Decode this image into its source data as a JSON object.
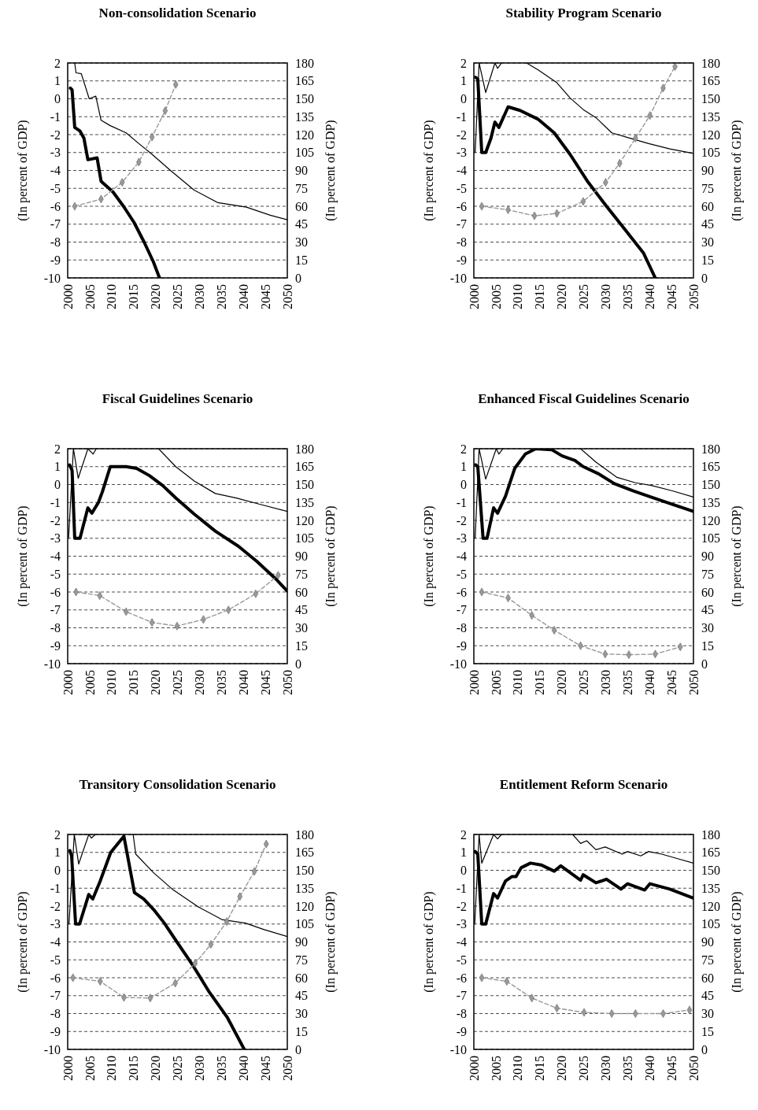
{
  "chart_data": [
    {
      "type": "line",
      "title": "Non-consolidation Scenario",
      "ylabel": "(In percent of GDP)",
      "y2label": "(In percent of GDP)",
      "xlim": [
        2000,
        2050
      ],
      "xticks": [
        2000,
        2005,
        2010,
        2015,
        2020,
        2025,
        2030,
        2035,
        2040,
        2045,
        2050
      ],
      "ylim": [
        -10,
        2
      ],
      "yticks": [
        -10,
        -9,
        -8,
        -7,
        -6,
        -5,
        -4,
        -3,
        -2,
        -1,
        0,
        1,
        2
      ],
      "y2lim": [
        0,
        180
      ],
      "y2ticks": [
        0,
        15,
        30,
        45,
        60,
        75,
        90,
        105,
        120,
        135,
        150,
        165,
        180
      ],
      "grid": "y",
      "series": [
        {
          "color": "#000000",
          "x": [
            2000.6,
            2001,
            2001.6,
            2002.8,
            2003.7,
            2004.6,
            2006.7,
            2007.6,
            2010.3,
            2012.7,
            2015.1,
            2017.4,
            2019.5,
            2020.9
          ],
          "values": [
            0.6,
            0.5,
            -1.6,
            -1.8,
            -2.2,
            -3.4,
            -3.3,
            -4.6,
            -5.2,
            -6.0,
            -6.9,
            -8.0,
            -9.1,
            -10
          ]
        },
        {
          "color": "#000000",
          "x": [
            2001.6,
            2001.9,
            2003.1,
            2004.9,
            2006.4,
            2007.6,
            2009.7,
            2013.3,
            2016.2,
            2019.2,
            2023.4,
            2028.8,
            2034.2,
            2040.7,
            2046.1,
            2050
          ],
          "values": [
            2,
            1.45,
            1.4,
            0,
            0.15,
            -1.2,
            -1.5,
            -1.9,
            -2.5,
            -3.1,
            -4.0,
            -5.1,
            -5.8,
            -6.05,
            -6.5,
            -6.75
          ]
        },
        {
          "color": "#999999",
          "axis": "y2",
          "marker": "diamond",
          "line_style": "dashed",
          "x": [
            2001.6,
            2007.6,
            2012.4,
            2016.2,
            2019.2,
            2022.2,
            2024.6
          ],
          "values": [
            60,
            66,
            80,
            97,
            118,
            140,
            162
          ]
        }
      ]
    },
    {
      "type": "line",
      "title": "Stability Program Scenario",
      "ylabel": "(In percent of GDP)",
      "y2label": "(In percent of GDP)",
      "xlim": [
        2000,
        2050
      ],
      "xticks": [
        2000,
        2005,
        2010,
        2015,
        2020,
        2025,
        2030,
        2035,
        2040,
        2045,
        2050
      ],
      "ylim": [
        -10,
        2
      ],
      "yticks": [
        -10,
        -9,
        -8,
        -7,
        -6,
        -5,
        -4,
        -3,
        -2,
        -1,
        0,
        1,
        2
      ],
      "y2lim": [
        0,
        180
      ],
      "y2ticks": [
        0,
        15,
        30,
        45,
        60,
        75,
        90,
        105,
        120,
        135,
        150,
        165,
        180
      ],
      "grid": "y",
      "series": [
        {
          "color": "#000000",
          "x": [
            2000.4,
            2000.9,
            2001.8,
            2002.7,
            2003.9,
            2004.8,
            2005.7,
            2007.8,
            2010.5,
            2014.7,
            2018.3,
            2021.9,
            2026,
            2030.2,
            2034.4,
            2038.6,
            2041.3
          ],
          "values": [
            1.2,
            1.1,
            -3,
            -3,
            -2.2,
            -1.3,
            -1.6,
            -0.45,
            -0.65,
            -1.15,
            -1.9,
            -3.1,
            -4.65,
            -6.0,
            -7.3,
            -8.6,
            -10
          ]
        },
        {
          "color": "#000000",
          "x": [
            2000.3,
            2001.2,
            2002.7,
            2004.8,
            2005.4,
            2006.3,
            2009,
            2012,
            2014.7,
            2018.9,
            2021.9,
            2024.9,
            2027.8,
            2031.4,
            2035.6,
            2039.8,
            2044.6,
            2050
          ],
          "values": [
            -3,
            2,
            0.35,
            2,
            1.7,
            2,
            null,
            2,
            1.6,
            0.9,
            0.05,
            -0.6,
            -1.05,
            -1.9,
            -2.2,
            -2.5,
            -2.8,
            -3.05
          ]
        },
        {
          "color": "#999999",
          "axis": "y2",
          "marker": "diamond",
          "line_style": "dashed",
          "x": [
            2001.8,
            2007.8,
            2013.8,
            2018.9,
            2024.9,
            2030,
            2033.2,
            2036.8,
            2040.1,
            2043.1,
            2045.8
          ],
          "values": [
            60,
            57,
            52,
            54,
            64,
            80,
            96,
            117,
            136,
            159,
            177
          ]
        }
      ]
    },
    {
      "type": "line",
      "title": "Fiscal Guidelines Scenario",
      "ylabel": "(In percent of GDP)",
      "y2label": "(In percent of GDP)",
      "xlim": [
        2000,
        2050
      ],
      "xticks": [
        2000,
        2005,
        2010,
        2015,
        2020,
        2025,
        2030,
        2035,
        2040,
        2045,
        2050
      ],
      "ylim": [
        -10,
        2
      ],
      "yticks": [
        -10,
        -9,
        -8,
        -7,
        -6,
        -5,
        -4,
        -3,
        -2,
        -1,
        0,
        1,
        2
      ],
      "y2lim": [
        0,
        180
      ],
      "y2ticks": [
        0,
        15,
        30,
        45,
        60,
        75,
        90,
        105,
        120,
        135,
        150,
        165,
        180
      ],
      "grid": "y",
      "series": [
        {
          "color": "#000000",
          "x": [
            2000.4,
            2001,
            2001.6,
            2002.8,
            2004.6,
            2005.5,
            2007,
            2007.9,
            2009.7,
            2013.3,
            2015.7,
            2018.6,
            2021.6,
            2024.6,
            2028.8,
            2033.6,
            2038.9,
            2043.1,
            2047.3,
            2050
          ],
          "values": [
            1.1,
            0.8,
            -3,
            -3,
            -1.3,
            -1.6,
            -1.0,
            -0.4,
            1,
            1.0,
            0.9,
            0.5,
            -0.05,
            -0.75,
            -1.65,
            -2.6,
            -3.45,
            -4.3,
            -5.25,
            -5.95
          ]
        },
        {
          "color": "#000000",
          "x": [
            2000.2,
            2001.3,
            2002.4,
            2004.6,
            2005.8,
            2006.5,
            2013,
            2020.7,
            2024.6,
            2028.8,
            2033.6,
            2038.4,
            2043.7,
            2050
          ],
          "values": [
            -3,
            2,
            0.35,
            2,
            1.7,
            2,
            null,
            2,
            1,
            0.2,
            -0.5,
            -0.75,
            -1.1,
            -1.5
          ]
        },
        {
          "color": "#999999",
          "axis": "y2",
          "marker": "diamond",
          "line_style": "dashed",
          "x": [
            2001.9,
            2007.3,
            2013.3,
            2019.2,
            2024.9,
            2030.9,
            2036.6,
            2042.8,
            2047.9
          ],
          "values": [
            60,
            57,
            43.5,
            34.5,
            31.5,
            37,
            45,
            58.5,
            74
          ]
        }
      ]
    },
    {
      "type": "line",
      "title": "Enhanced Fiscal Guidelines Scenario",
      "ylabel": "(In percent of GDP)",
      "y2label": "(In percent of GDP)",
      "xlim": [
        2000,
        2050
      ],
      "xticks": [
        2000,
        2005,
        2010,
        2015,
        2020,
        2025,
        2030,
        2035,
        2040,
        2045,
        2050
      ],
      "ylim": [
        -10,
        2
      ],
      "yticks": [
        -10,
        -9,
        -8,
        -7,
        -6,
        -5,
        -4,
        -3,
        -2,
        -1,
        0,
        1,
        2
      ],
      "y2lim": [
        0,
        180
      ],
      "y2ticks": [
        0,
        15,
        30,
        45,
        60,
        75,
        90,
        105,
        120,
        135,
        150,
        165,
        180
      ],
      "grid": "y",
      "series": [
        {
          "color": "#000000",
          "x": [
            2000.4,
            2000.9,
            2002.1,
            2003,
            2004.5,
            2005.4,
            2007.2,
            2009.3,
            2011.7,
            2014.1,
            2017.7,
            2020.1,
            2023,
            2024.9,
            2028.4,
            2032,
            2036.2,
            2039.8,
            2045.2,
            2050
          ],
          "values": [
            1.1,
            1.0,
            -3,
            -3,
            -1.3,
            -1.6,
            -0.65,
            0.9,
            1.7,
            2,
            1.95,
            1.6,
            1.35,
            1.0,
            0.6,
            0.05,
            -0.35,
            -0.65,
            -1.1,
            -1.5
          ]
        },
        {
          "color": "#000000",
          "x": [
            2000.3,
            2001.2,
            2002.7,
            2005.1,
            2005.7,
            2006.6,
            2015,
            2024.3,
            2027.8,
            2032.6,
            2036.8,
            2040.4,
            2045.2,
            2050
          ],
          "values": [
            -3,
            2,
            0.3,
            2,
            1.7,
            2,
            null,
            2,
            1.25,
            0.4,
            0.1,
            -0.05,
            -0.35,
            -0.7
          ]
        },
        {
          "color": "#999999",
          "axis": "y2",
          "marker": "diamond",
          "line_style": "dashed",
          "x": [
            2001.8,
            2007.8,
            2013.2,
            2018.3,
            2024.3,
            2029.9,
            2035.3,
            2041.3,
            2047
          ],
          "values": [
            60,
            55,
            40.5,
            28,
            15,
            8,
            7.5,
            8,
            14
          ]
        }
      ]
    },
    {
      "type": "line",
      "title": "Transitory Consolidation Scenario",
      "ylabel": "(In percent of GDP)",
      "y2label": "(In percent of GDP)",
      "xlim": [
        2000,
        2050
      ],
      "xticks": [
        2000,
        2005,
        2010,
        2015,
        2020,
        2025,
        2030,
        2035,
        2040,
        2045,
        2050
      ],
      "ylim": [
        -10,
        2
      ],
      "yticks": [
        -10,
        -9,
        -8,
        -7,
        -6,
        -5,
        -4,
        -3,
        -2,
        -1,
        0,
        1,
        2
      ],
      "y2lim": [
        0,
        180
      ],
      "y2ticks": [
        0,
        15,
        30,
        45,
        60,
        75,
        90,
        105,
        120,
        135,
        150,
        165,
        180
      ],
      "grid": "y",
      "series": [
        {
          "color": "#000000",
          "x": [
            2000.5,
            2000.9,
            2001.8,
            2002.7,
            2004.8,
            2005.7,
            2007.4,
            2009.8,
            2012.8,
            2015.2,
            2017.3,
            2019.6,
            2022,
            2025,
            2028.6,
            2032.1,
            2036.3,
            2040.2
          ],
          "values": [
            1.1,
            0.8,
            -3,
            -3,
            -1.35,
            -1.6,
            -0.6,
            1,
            1.9,
            -1.25,
            -1.6,
            -2.2,
            -2.95,
            -4.05,
            -5.35,
            -6.75,
            -8.2,
            -10
          ]
        },
        {
          "color": "#000000",
          "x": [
            2000.3,
            2001.5,
            2002.5,
            2004.8,
            2005.4,
            2006.3,
            2010,
            2014.9,
            2015.5,
            2019.6,
            2023.8,
            2029.8,
            2035.1,
            2040.5,
            2044.6,
            2050
          ],
          "values": [
            -3,
            2,
            0.35,
            2,
            1.8,
            2,
            null,
            2,
            0.9,
            -0.15,
            -1.05,
            -2.05,
            -2.75,
            -2.95,
            -3.3,
            -3.7
          ]
        },
        {
          "color": "#999999",
          "axis": "y2",
          "marker": "diamond",
          "line_style": "dashed",
          "x": [
            2001.2,
            2007.4,
            2012.8,
            2018.8,
            2024.5,
            2029,
            2032.6,
            2036.2,
            2039.2,
            2042.5,
            2045.2
          ],
          "values": [
            60,
            57,
            43.5,
            43,
            55.5,
            72,
            88,
            107,
            128,
            149,
            172
          ]
        }
      ]
    },
    {
      "type": "line",
      "title": "Entitlement Reform Scenario",
      "ylabel": "(In percent of GDP)",
      "y2label": "(In percent of GDP)",
      "xlim": [
        2000,
        2050
      ],
      "xticks": [
        2000,
        2005,
        2010,
        2015,
        2020,
        2025,
        2030,
        2035,
        2040,
        2045,
        2050
      ],
      "ylim": [
        -10,
        2
      ],
      "yticks": [
        -10,
        -9,
        -8,
        -7,
        -6,
        -5,
        -4,
        -3,
        -2,
        -1,
        0,
        1,
        2
      ],
      "y2lim": [
        0,
        180
      ],
      "y2ticks": [
        0,
        15,
        30,
        45,
        60,
        75,
        90,
        105,
        120,
        135,
        150,
        165,
        180
      ],
      "grid": "y",
      "series": [
        {
          "color": "#000000",
          "x": [
            2000.3,
            2000.9,
            2001.8,
            2002.7,
            2004.5,
            2005.4,
            2007.2,
            2008.7,
            2009.6,
            2010.8,
            2012.9,
            2015.3,
            2018.3,
            2019.8,
            2024.3,
            2024.9,
            2027.8,
            2030.2,
            2033.5,
            2035,
            2038.9,
            2040.1,
            2044.6,
            2050
          ],
          "values": [
            1.05,
            0.9,
            -3,
            -3,
            -1.3,
            -1.55,
            -0.6,
            -0.35,
            -0.35,
            0.15,
            0.4,
            0.3,
            -0.05,
            0.25,
            -0.55,
            -0.25,
            -0.7,
            -0.5,
            -1.05,
            -0.75,
            -1.1,
            -0.75,
            -1.05,
            -1.55
          ]
        },
        {
          "color": "#000000",
          "x": [
            2000.2,
            2001.2,
            2001.8,
            2004.5,
            2005.4,
            2006.3,
            2014,
            2022.5,
            2024.3,
            2025.7,
            2027.8,
            2029.9,
            2033.8,
            2035,
            2038,
            2039.8,
            2042.8,
            2046.4,
            2050
          ],
          "values": [
            -3,
            2,
            0.4,
            2,
            1.75,
            2,
            null,
            2,
            1.5,
            1.65,
            1.15,
            1.3,
            0.9,
            1.05,
            0.8,
            1.05,
            0.9,
            0.65,
            0.4
          ]
        },
        {
          "color": "#999999",
          "axis": "y2",
          "marker": "diamond",
          "line_style": "dashed",
          "x": [
            2001.8,
            2007.5,
            2013.2,
            2018.9,
            2025.1,
            2031.4,
            2036.8,
            2043.1,
            2049.1
          ],
          "values": [
            60,
            57,
            43,
            34.5,
            31,
            30,
            30,
            30,
            33
          ]
        }
      ]
    }
  ]
}
